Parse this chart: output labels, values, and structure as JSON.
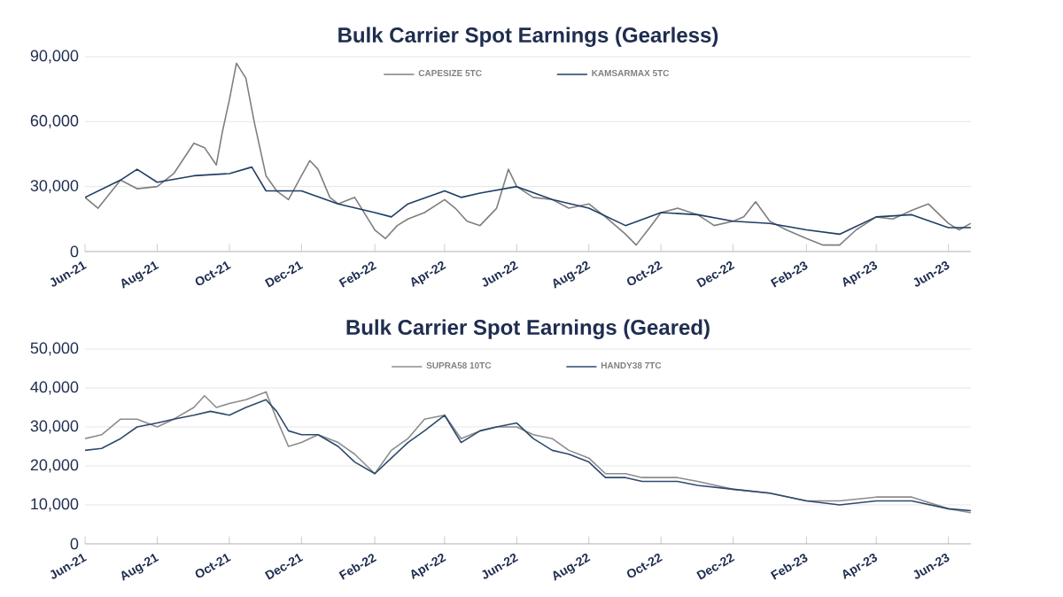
{
  "chart_data": [
    {
      "type": "line",
      "title": "Bulk Carrier Spot Earnings (Gearless)",
      "legend": "top",
      "grid": "y",
      "xlim": [
        "2021-06-01",
        "2023-06-20"
      ],
      "ylim": [
        0,
        90000
      ],
      "yticks": [
        {
          "value": 0,
          "label": "0"
        },
        {
          "value": 30000,
          "label": "30,000"
        },
        {
          "value": 60000,
          "label": "60,000"
        },
        {
          "value": 90000,
          "label": "90,000"
        }
      ],
      "xticks": [
        {
          "value": "2021-06-01",
          "label": "Jun-21"
        },
        {
          "value": "2021-08-01",
          "label": "Aug-21"
        },
        {
          "value": "2021-10-01",
          "label": "Oct-21"
        },
        {
          "value": "2021-12-01",
          "label": "Dec-21"
        },
        {
          "value": "2022-02-01",
          "label": "Feb-22"
        },
        {
          "value": "2022-04-01",
          "label": "Apr-22"
        },
        {
          "value": "2022-06-01",
          "label": "Jun-22"
        },
        {
          "value": "2022-08-01",
          "label": "Aug-22"
        },
        {
          "value": "2022-10-01",
          "label": "Oct-22"
        },
        {
          "value": "2022-12-01",
          "label": "Dec-22"
        },
        {
          "value": "2023-02-01",
          "label": "Feb-23"
        },
        {
          "value": "2023-04-01",
          "label": "Apr-23"
        },
        {
          "value": "2023-06-01",
          "label": "Jun-23"
        }
      ],
      "series": [
        {
          "name": "CAPESIZE 5TC",
          "color": "#7f7f7f",
          "x": [
            "2021-06-01",
            "2021-06-12",
            "2021-07-01",
            "2021-07-15",
            "2021-08-01",
            "2021-08-15",
            "2021-09-01",
            "2021-09-10",
            "2021-09-20",
            "2021-09-25",
            "2021-10-01",
            "2021-10-07",
            "2021-10-15",
            "2021-10-22",
            "2021-11-01",
            "2021-11-10",
            "2021-11-20",
            "2021-12-01",
            "2021-12-08",
            "2021-12-15",
            "2021-12-25",
            "2022-01-01",
            "2022-01-15",
            "2022-02-01",
            "2022-02-10",
            "2022-02-20",
            "2022-03-01",
            "2022-03-15",
            "2022-04-01",
            "2022-04-10",
            "2022-04-20",
            "2022-05-01",
            "2022-05-15",
            "2022-05-25",
            "2022-06-01",
            "2022-06-15",
            "2022-07-01",
            "2022-07-15",
            "2022-08-01",
            "2022-08-15",
            "2022-09-01",
            "2022-09-10",
            "2022-09-20",
            "2022-10-01",
            "2022-10-15",
            "2022-11-01",
            "2022-11-15",
            "2022-12-01",
            "2022-12-10",
            "2022-12-20",
            "2023-01-01",
            "2023-01-15",
            "2023-02-01",
            "2023-02-15",
            "2023-03-01",
            "2023-03-15",
            "2023-04-01",
            "2023-04-15",
            "2023-05-01",
            "2023-05-15",
            "2023-06-01",
            "2023-06-10",
            "2023-06-20"
          ],
          "values": [
            25000,
            20000,
            33000,
            29000,
            30000,
            36000,
            50000,
            48000,
            40000,
            55000,
            70000,
            87000,
            80000,
            60000,
            35000,
            28000,
            24000,
            35000,
            42000,
            38000,
            25000,
            22000,
            25000,
            10000,
            6000,
            12000,
            15000,
            18000,
            24000,
            20000,
            14000,
            12000,
            20000,
            38000,
            30000,
            25000,
            24000,
            20000,
            22000,
            16000,
            8000,
            3000,
            10000,
            18000,
            20000,
            17000,
            12000,
            14000,
            16000,
            23000,
            14000,
            10000,
            6000,
            3000,
            3000,
            10000,
            16000,
            15000,
            19000,
            22000,
            13000,
            10000,
            13000
          ]
        },
        {
          "name": "KAMSARMAX 5TC",
          "color": "#1f3e64",
          "x": [
            "2021-06-01",
            "2021-07-01",
            "2021-07-15",
            "2021-08-01",
            "2021-09-01",
            "2021-10-01",
            "2021-10-20",
            "2021-11-01",
            "2021-12-01",
            "2022-01-01",
            "2022-02-01",
            "2022-02-15",
            "2022-03-01",
            "2022-04-01",
            "2022-04-15",
            "2022-05-01",
            "2022-06-01",
            "2022-07-01",
            "2022-08-01",
            "2022-09-01",
            "2022-10-01",
            "2022-11-01",
            "2022-12-01",
            "2023-01-01",
            "2023-02-01",
            "2023-03-01",
            "2023-04-01",
            "2023-05-01",
            "2023-06-01",
            "2023-06-20"
          ],
          "values": [
            25000,
            33000,
            38000,
            32000,
            35000,
            36000,
            39000,
            28000,
            28000,
            22000,
            18000,
            16000,
            22000,
            28000,
            25000,
            27000,
            30000,
            24000,
            20000,
            12000,
            18000,
            17000,
            14000,
            13000,
            10000,
            8000,
            16000,
            17000,
            11000,
            11000
          ]
        }
      ]
    },
    {
      "type": "line",
      "title": "Bulk Carrier Spot Earnings (Geared)",
      "legend": "top",
      "grid": "y",
      "xlim": [
        "2021-06-01",
        "2023-06-20"
      ],
      "ylim": [
        0,
        50000
      ],
      "yticks": [
        {
          "value": 0,
          "label": "0"
        },
        {
          "value": 10000,
          "label": "10,000"
        },
        {
          "value": 20000,
          "label": "20,000"
        },
        {
          "value": 30000,
          "label": "30,000"
        },
        {
          "value": 40000,
          "label": "40,000"
        },
        {
          "value": 50000,
          "label": "50,000"
        }
      ],
      "xticks": [
        {
          "value": "2021-06-01",
          "label": "Jun-21"
        },
        {
          "value": "2021-08-01",
          "label": "Aug-21"
        },
        {
          "value": "2021-10-01",
          "label": "Oct-21"
        },
        {
          "value": "2021-12-01",
          "label": "Dec-21"
        },
        {
          "value": "2022-02-01",
          "label": "Feb-22"
        },
        {
          "value": "2022-04-01",
          "label": "Apr-22"
        },
        {
          "value": "2022-06-01",
          "label": "Jun-22"
        },
        {
          "value": "2022-08-01",
          "label": "Aug-22"
        },
        {
          "value": "2022-10-01",
          "label": "Oct-22"
        },
        {
          "value": "2022-12-01",
          "label": "Dec-22"
        },
        {
          "value": "2023-02-01",
          "label": "Feb-23"
        },
        {
          "value": "2023-04-01",
          "label": "Apr-23"
        },
        {
          "value": "2023-06-01",
          "label": "Jun-23"
        }
      ],
      "series": [
        {
          "name": "SUPRA58 10TC",
          "color": "#8c8c8c",
          "x": [
            "2021-06-01",
            "2021-06-15",
            "2021-07-01",
            "2021-07-15",
            "2021-08-01",
            "2021-08-15",
            "2021-09-01",
            "2021-09-10",
            "2021-09-20",
            "2021-10-01",
            "2021-10-15",
            "2021-11-01",
            "2021-11-10",
            "2021-11-20",
            "2021-12-01",
            "2021-12-15",
            "2022-01-01",
            "2022-01-15",
            "2022-02-01",
            "2022-02-15",
            "2022-03-01",
            "2022-03-15",
            "2022-04-01",
            "2022-04-15",
            "2022-05-01",
            "2022-05-15",
            "2022-06-01",
            "2022-06-15",
            "2022-07-01",
            "2022-07-15",
            "2022-08-01",
            "2022-08-15",
            "2022-09-01",
            "2022-09-15",
            "2022-10-01",
            "2022-10-15",
            "2022-11-01",
            "2022-12-01",
            "2023-01-01",
            "2023-02-01",
            "2023-03-01",
            "2023-04-01",
            "2023-05-01",
            "2023-06-01",
            "2023-06-20"
          ],
          "values": [
            27000,
            28000,
            32000,
            32000,
            30000,
            32000,
            35000,
            38000,
            35000,
            36000,
            37000,
            39000,
            32000,
            25000,
            26000,
            28000,
            26000,
            23000,
            18000,
            24000,
            27000,
            32000,
            33000,
            27000,
            29000,
            30000,
            30000,
            28000,
            27000,
            24000,
            22000,
            18000,
            18000,
            17000,
            17000,
            17000,
            16000,
            14000,
            13000,
            11000,
            11000,
            12000,
            12000,
            9000,
            8000
          ]
        },
        {
          "name": "HANDY38 7TC",
          "color": "#2e4a6e",
          "x": [
            "2021-06-01",
            "2021-06-15",
            "2021-07-01",
            "2021-07-15",
            "2021-08-01",
            "2021-08-15",
            "2021-09-01",
            "2021-09-15",
            "2021-10-01",
            "2021-10-15",
            "2021-11-01",
            "2021-11-10",
            "2021-11-20",
            "2021-12-01",
            "2021-12-15",
            "2022-01-01",
            "2022-01-15",
            "2022-02-01",
            "2022-02-15",
            "2022-03-01",
            "2022-03-15",
            "2022-04-01",
            "2022-04-15",
            "2022-05-01",
            "2022-05-15",
            "2022-06-01",
            "2022-06-15",
            "2022-07-01",
            "2022-07-15",
            "2022-08-01",
            "2022-08-15",
            "2022-09-01",
            "2022-09-15",
            "2022-10-01",
            "2022-10-15",
            "2022-11-01",
            "2022-12-01",
            "2023-01-01",
            "2023-02-01",
            "2023-03-01",
            "2023-04-01",
            "2023-05-01",
            "2023-06-01",
            "2023-06-20"
          ],
          "values": [
            24000,
            24500,
            27000,
            30000,
            31000,
            32000,
            33000,
            34000,
            33000,
            35000,
            37000,
            34000,
            29000,
            28000,
            28000,
            25000,
            21000,
            18000,
            22000,
            26000,
            29000,
            33000,
            26000,
            29000,
            30000,
            31000,
            27000,
            24000,
            23000,
            21000,
            17000,
            17000,
            16000,
            16000,
            16000,
            15000,
            14000,
            13000,
            11000,
            10000,
            11000,
            11000,
            9000,
            8500
          ]
        }
      ]
    }
  ]
}
